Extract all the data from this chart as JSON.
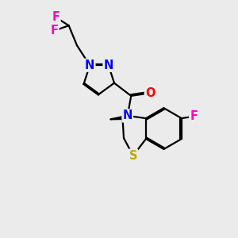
{
  "background_color": "#ebebeb",
  "bond_color": "#000000",
  "bond_width": 1.6,
  "atom_colors": {
    "N": "#0000ff",
    "O": "#ff0000",
    "S": "#bbaa00",
    "F": "#ff00cc",
    "C": "#000000"
  },
  "font_size_atom": 10.5
}
